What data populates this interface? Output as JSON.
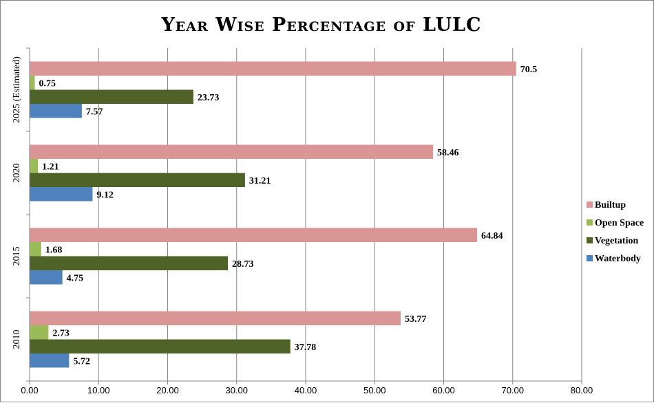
{
  "chart_data": {
    "type": "bar",
    "orientation": "horizontal",
    "title": "Year Wise Percentage of LULC",
    "categories": [
      "2010",
      "2015",
      "2020",
      "2025 (Estimated)"
    ],
    "series": [
      {
        "name": "Waterbody",
        "color": "#4f81bd",
        "values": [
          5.72,
          4.75,
          9.12,
          7.57
        ]
      },
      {
        "name": "Vegetation",
        "color": "#4f6228",
        "values": [
          37.78,
          28.73,
          31.21,
          23.73
        ]
      },
      {
        "name": "Open Space",
        "color": "#9bbb59",
        "values": [
          2.73,
          1.68,
          1.21,
          0.75
        ]
      },
      {
        "name": "Builtup",
        "color": "#d99694",
        "values": [
          53.77,
          64.84,
          58.46,
          70.5
        ]
      }
    ],
    "data_labels": [
      [
        "5.72",
        "4.75",
        "9.12",
        "7.57"
      ],
      [
        "37.78",
        "28.73",
        "31.21",
        "23.73"
      ],
      [
        "2.73",
        "1.68",
        "1.21",
        "0.75"
      ],
      [
        "53.77",
        "64.84",
        "58.46",
        "70.5"
      ]
    ],
    "x_ticks": [
      "0.00",
      "10.00",
      "20.00",
      "30.00",
      "40.00",
      "50.00",
      "60.00",
      "70.00",
      "80.00"
    ],
    "xlim": [
      0,
      80
    ],
    "xlabel": "",
    "ylabel": "",
    "grid": "vertical",
    "legend": [
      "Builtup",
      "Open Space",
      "Vegetation",
      "Waterbody"
    ],
    "legend_position": "right"
  }
}
